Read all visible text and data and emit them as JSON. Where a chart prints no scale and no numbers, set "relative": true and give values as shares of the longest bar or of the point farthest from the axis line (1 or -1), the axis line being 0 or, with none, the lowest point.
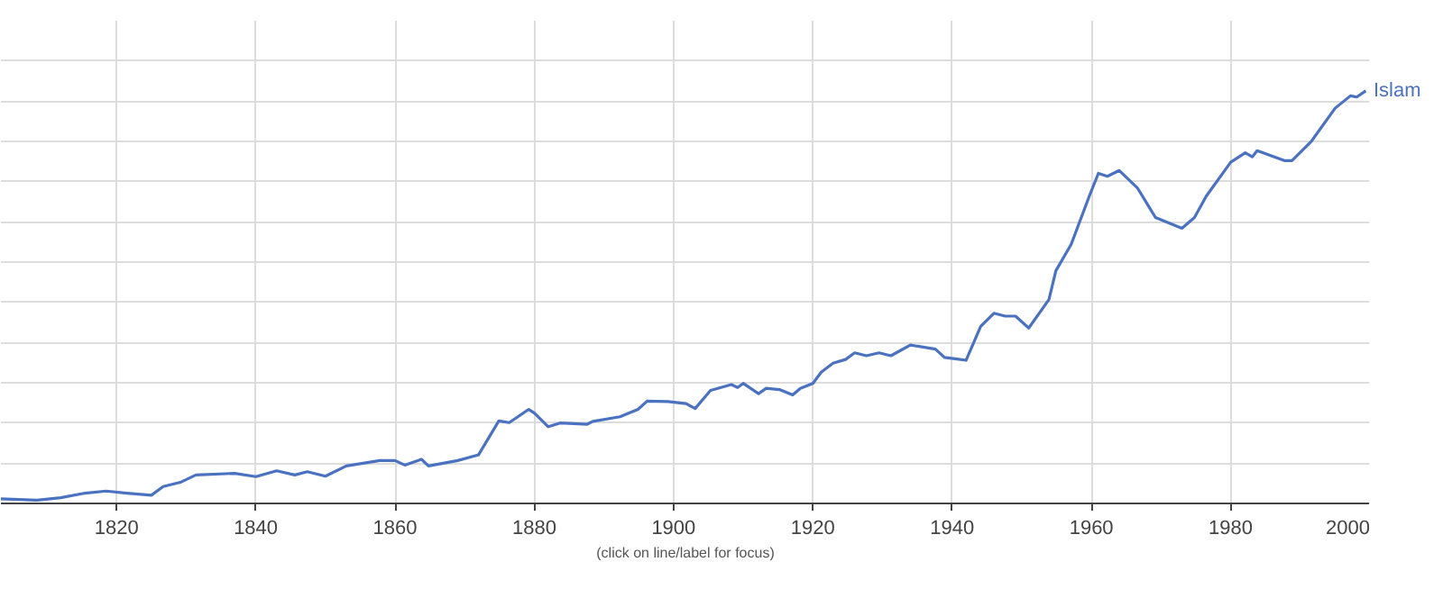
{
  "chart_data": {
    "type": "line",
    "relative": true,
    "annotations": [
      "(click on line/label for focus)"
    ],
    "xlim": [
      1803.4,
      2000
    ],
    "xticks": [
      1820,
      1840,
      1860,
      1880,
      1900,
      1920,
      1940,
      1960,
      1980,
      2000
    ],
    "grid": true,
    "series": [
      {
        "name": "Islam",
        "color": "#4a72c0",
        "x": [
          1803.4,
          1808.6,
          1812,
          1815.5,
          1818.5,
          1821.5,
          1825,
          1826.7,
          1829.3,
          1831.4,
          1837,
          1840,
          1843,
          1845.6,
          1847.4,
          1850,
          1853,
          1857.8,
          1860,
          1861.4,
          1863.8,
          1864.8,
          1869,
          1872,
          1874.9,
          1876.4,
          1879.2,
          1880,
          1882,
          1883.7,
          1887.6,
          1888.4,
          1892.3,
          1894.9,
          1896.2,
          1899.2,
          1901.8,
          1903.1,
          1905.3,
          1908.3,
          1909.2,
          1910,
          1912.2,
          1913.3,
          1915.2,
          1917.1,
          1918.2,
          1920,
          1921.2,
          1922.9,
          1924.7,
          1926,
          1927.7,
          1929.5,
          1931.2,
          1932.5,
          1934,
          1937.6,
          1938.9,
          1940.7,
          1942,
          1944.1,
          1946,
          1947.6,
          1949.1,
          1951,
          1953.9,
          1954.9,
          1957.1,
          1959.7,
          1961,
          1962.3,
          1964,
          1966.6,
          1969.2,
          1973,
          1974.8,
          1976.5,
          1980,
          1982.1,
          1983.1,
          1983.8,
          1987.7,
          1988.8,
          1991.6,
          1995,
          1997.2,
          1998.1,
          1999.4
        ],
        "values": [
          0.011,
          0.008,
          0.014,
          0.025,
          0.03,
          0.025,
          0.02,
          0.041,
          0.052,
          0.069,
          0.073,
          0.065,
          0.079,
          0.069,
          0.077,
          0.066,
          0.091,
          0.104,
          0.104,
          0.093,
          0.107,
          0.091,
          0.104,
          0.118,
          0.2,
          0.196,
          0.228,
          0.219,
          0.186,
          0.195,
          0.192,
          0.199,
          0.21,
          0.228,
          0.248,
          0.247,
          0.242,
          0.23,
          0.274,
          0.288,
          0.281,
          0.291,
          0.266,
          0.279,
          0.276,
          0.263,
          0.279,
          0.291,
          0.318,
          0.34,
          0.349,
          0.365,
          0.358,
          0.365,
          0.358,
          0.37,
          0.384,
          0.374,
          0.354,
          0.35,
          0.347,
          0.429,
          0.461,
          0.454,
          0.454,
          0.425,
          0.494,
          0.564,
          0.628,
          0.745,
          0.8,
          0.793,
          0.807,
          0.765,
          0.693,
          0.667,
          0.693,
          0.745,
          0.827,
          0.85,
          0.84,
          0.855,
          0.831,
          0.831,
          0.878,
          0.958,
          0.988,
          0.985,
          1.0
        ]
      }
    ]
  }
}
